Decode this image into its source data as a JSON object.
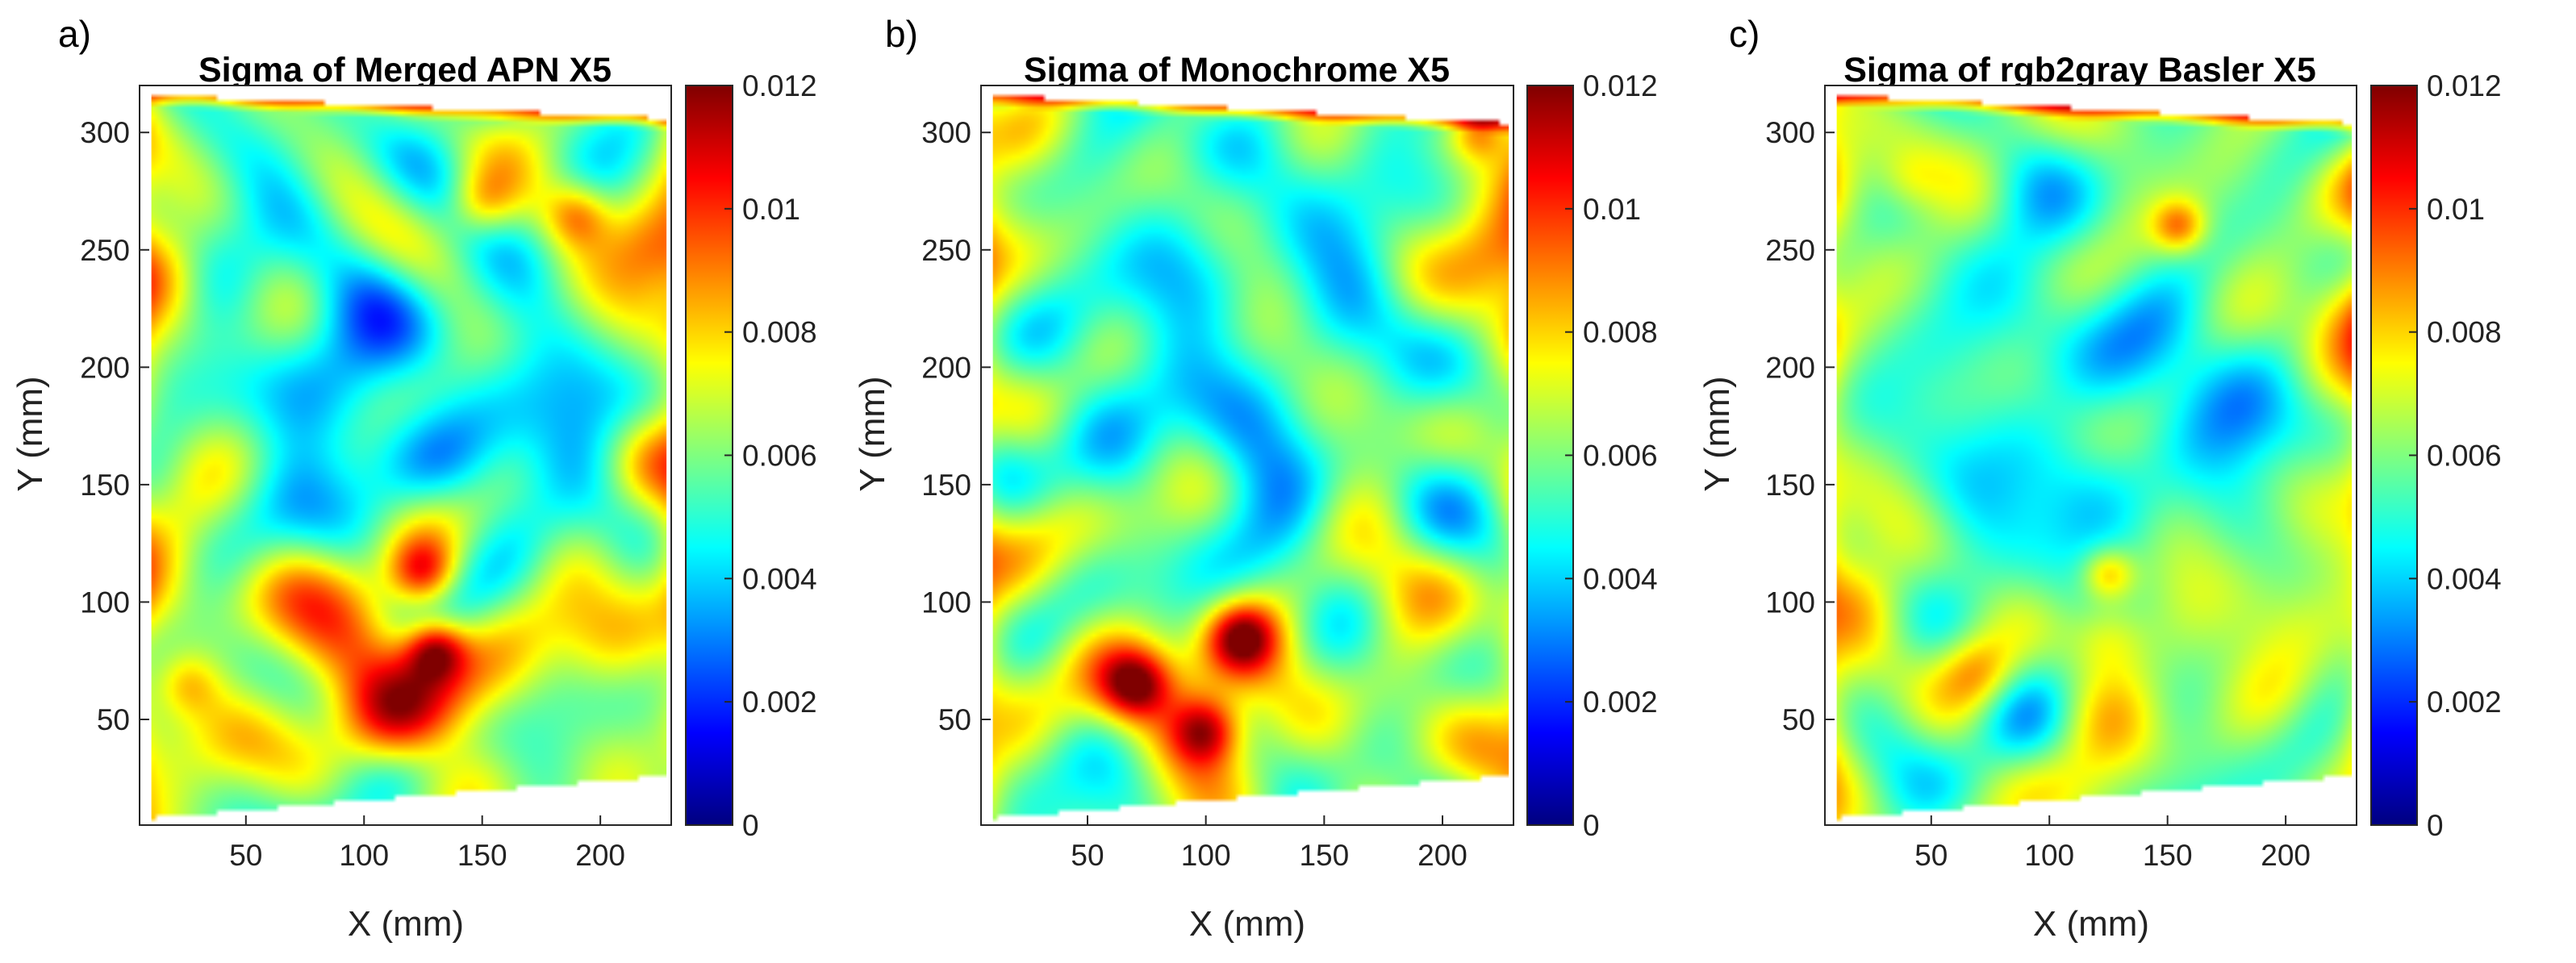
{
  "figure": {
    "caption_labels": [
      "a)",
      "b)",
      "c)"
    ]
  },
  "colormap": {
    "name": "jet",
    "stops": [
      "#00007f",
      "#0000ff",
      "#007fff",
      "#00ffff",
      "#7fff7f",
      "#ffff00",
      "#ff7f00",
      "#ff0000",
      "#7f0000"
    ]
  },
  "chart_data": [
    {
      "type": "heatmap",
      "panel_label": "a)",
      "title": "Sigma of Merged APN X5",
      "xlabel": "X (mm)",
      "ylabel": "Y (mm)",
      "xlim": [
        5,
        230
      ],
      "ylim": [
        5,
        320
      ],
      "xticks": [
        50,
        100,
        150,
        200
      ],
      "yticks": [
        50,
        100,
        150,
        200,
        250,
        300
      ],
      "colorbar": {
        "clim": [
          0,
          0.012
        ],
        "ticks": [
          0,
          0.002,
          0.004,
          0.006,
          0.008,
          0.01,
          0.012
        ]
      },
      "domain_corners": {
        "top_left": [
          10,
          316
        ],
        "top_right": [
          228,
          306
        ],
        "bottom_right": [
          228,
          26
        ],
        "bottom_left": [
          10,
          8
        ]
      },
      "base_value": 0.0058,
      "hotspots": [
        {
          "x": 120,
          "y": 80,
          "sigma_mm": 30,
          "value": 0.0085
        },
        {
          "x": 125,
          "y": 112,
          "sigma_mm": 10,
          "value": 0.0098
        },
        {
          "x": 130,
          "y": 80,
          "sigma_mm": 9,
          "value": 0.0102
        },
        {
          "x": 110,
          "y": 50,
          "sigma_mm": 16,
          "value": 0.0085
        },
        {
          "x": 40,
          "y": 45,
          "sigma_mm": 20,
          "value": 0.0082
        },
        {
          "x": 25,
          "y": 65,
          "sigma_mm": 10,
          "value": 0.008
        },
        {
          "x": 225,
          "y": 250,
          "sigma_mm": 15,
          "value": 0.0085
        },
        {
          "x": 220,
          "y": 160,
          "sigma_mm": 15,
          "value": 0.0078
        },
        {
          "x": 15,
          "y": 240,
          "sigma_mm": 15,
          "value": 0.0078
        },
        {
          "x": 150,
          "y": 270,
          "sigma_mm": 10,
          "value": 0.0082
        },
        {
          "x": 190,
          "y": 265,
          "sigma_mm": 10,
          "value": 0.0088
        },
        {
          "x": 80,
          "y": 110,
          "sigma_mm": 20,
          "value": 0.0078
        },
        {
          "x": 200,
          "y": 80,
          "sigma_mm": 15,
          "value": 0.0076
        }
      ],
      "coldspots": [
        {
          "x": 110,
          "y": 200,
          "sigma_mm": 45,
          "value": 0.0044
        },
        {
          "x": 80,
          "y": 150,
          "sigma_mm": 30,
          "value": 0.0043
        },
        {
          "x": 180,
          "y": 180,
          "sigma_mm": 25,
          "value": 0.0046
        }
      ]
    },
    {
      "type": "heatmap",
      "panel_label": "b)",
      "title": "Sigma of Monochrome X5",
      "xlabel": "X (mm)",
      "ylabel": "Y (mm)",
      "xlim": [
        5,
        230
      ],
      "ylim": [
        5,
        320
      ],
      "xticks": [
        50,
        100,
        150,
        200
      ],
      "yticks": [
        50,
        100,
        150,
        200,
        250,
        300
      ],
      "colorbar": {
        "clim": [
          0,
          0.012
        ],
        "ticks": [
          0,
          0.002,
          0.004,
          0.006,
          0.008,
          0.01,
          0.012
        ]
      },
      "domain_corners": {
        "top_left": [
          10,
          316
        ],
        "top_right": [
          228,
          304
        ],
        "bottom_right": [
          228,
          26
        ],
        "bottom_left": [
          10,
          8
        ]
      },
      "base_value": 0.0057,
      "hotspots": [
        {
          "x": 95,
          "y": 65,
          "sigma_mm": 28,
          "value": 0.0088
        },
        {
          "x": 70,
          "y": 65,
          "sigma_mm": 10,
          "value": 0.0098
        },
        {
          "x": 100,
          "y": 45,
          "sigma_mm": 10,
          "value": 0.0098
        },
        {
          "x": 115,
          "y": 85,
          "sigma_mm": 10,
          "value": 0.0098
        },
        {
          "x": 225,
          "y": 250,
          "sigma_mm": 15,
          "value": 0.0085
        },
        {
          "x": 215,
          "y": 300,
          "sigma_mm": 8,
          "value": 0.008
        },
        {
          "x": 180,
          "y": 60,
          "sigma_mm": 20,
          "value": 0.0074
        },
        {
          "x": 30,
          "y": 130,
          "sigma_mm": 18,
          "value": 0.0072
        }
      ],
      "coldspots": [
        {
          "x": 115,
          "y": 210,
          "sigma_mm": 45,
          "value": 0.0045
        },
        {
          "x": 70,
          "y": 150,
          "sigma_mm": 25,
          "value": 0.0045
        }
      ]
    },
    {
      "type": "heatmap",
      "panel_label": "c)",
      "title": "Sigma of rgb2gray Basler X5",
      "xlabel": "X (mm)",
      "ylabel": "Y (mm)",
      "xlim": [
        5,
        230
      ],
      "ylim": [
        5,
        320
      ],
      "xticks": [
        50,
        100,
        150,
        200
      ],
      "yticks": [
        50,
        100,
        150,
        200,
        250,
        300
      ],
      "colorbar": {
        "clim": [
          0,
          0.012
        ],
        "ticks": [
          0,
          0.002,
          0.004,
          0.006,
          0.008,
          0.01,
          0.012
        ]
      },
      "domain_corners": {
        "top_left": [
          10,
          316
        ],
        "top_right": [
          228,
          304
        ],
        "bottom_right": [
          228,
          26
        ],
        "bottom_left": [
          10,
          8
        ]
      },
      "base_value": 0.0059,
      "hotspots": [
        {
          "x": 70,
          "y": 70,
          "sigma_mm": 12,
          "value": 0.0088
        },
        {
          "x": 125,
          "y": 85,
          "sigma_mm": 12,
          "value": 0.0082
        },
        {
          "x": 125,
          "y": 112,
          "sigma_mm": 8,
          "value": 0.0088
        },
        {
          "x": 155,
          "y": 260,
          "sigma_mm": 8,
          "value": 0.009
        },
        {
          "x": 228,
          "y": 230,
          "sigma_mm": 15,
          "value": 0.008
        },
        {
          "x": 20,
          "y": 100,
          "sigma_mm": 15,
          "value": 0.0076
        },
        {
          "x": 200,
          "y": 60,
          "sigma_mm": 15,
          "value": 0.0074
        },
        {
          "x": 40,
          "y": 280,
          "sigma_mm": 10,
          "value": 0.0074
        }
      ],
      "coldspots": [
        {
          "x": 115,
          "y": 200,
          "sigma_mm": 45,
          "value": 0.0046
        },
        {
          "x": 80,
          "y": 150,
          "sigma_mm": 25,
          "value": 0.0046
        },
        {
          "x": 180,
          "y": 175,
          "sigma_mm": 20,
          "value": 0.0047
        }
      ]
    }
  ]
}
